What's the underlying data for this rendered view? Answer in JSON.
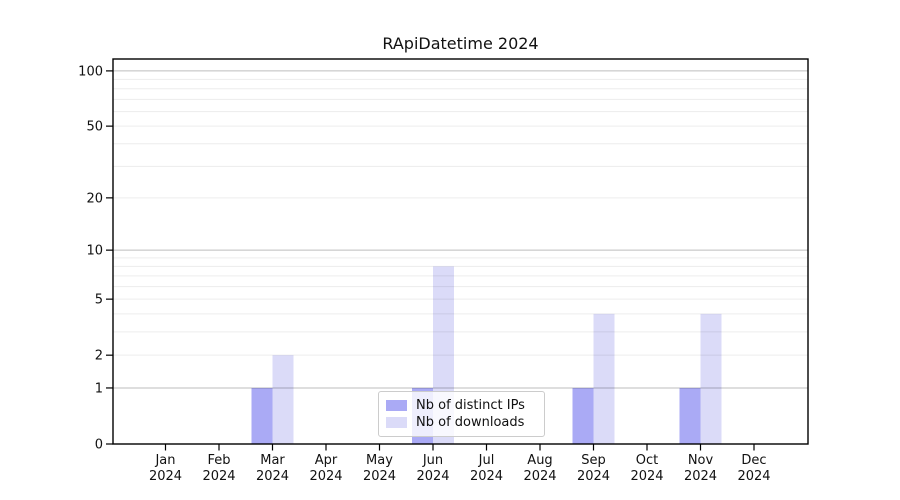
{
  "chart_data": {
    "type": "bar",
    "title": "RApiDatetime 2024",
    "scale": "log1p",
    "categories": [
      "Jan",
      "Feb",
      "Mar",
      "Apr",
      "May",
      "Jun",
      "Jul",
      "Aug",
      "Sep",
      "Oct",
      "Nov",
      "Dec"
    ],
    "category_year": "2024",
    "series": [
      {
        "name": "Nb of distinct IPs",
        "color": "#aaaaf5",
        "values": [
          0,
          0,
          1,
          0,
          0,
          1,
          0,
          0,
          1,
          0,
          1,
          0
        ]
      },
      {
        "name": "Nb of downloads",
        "color": "#dbdbf8",
        "values": [
          0,
          0,
          2,
          0,
          0,
          8,
          0,
          0,
          4,
          0,
          4,
          0
        ]
      }
    ],
    "y_ticks": [
      0,
      1,
      2,
      5,
      10,
      20,
      50,
      100
    ],
    "ylim": [
      0,
      116
    ],
    "xlabel": "",
    "ylabel": "",
    "grid": true,
    "legend_position": "lower center"
  },
  "style": {
    "grid_minor": "rgba(0,0,0,0.075)",
    "grid_major": "rgba(0,0,0,0.26)",
    "axis_color": "#000000",
    "text_color": "#111111",
    "legend_border": "#cccccc"
  }
}
